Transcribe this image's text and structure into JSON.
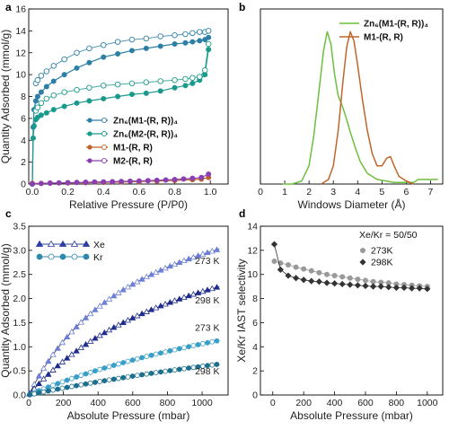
{
  "chart_data": [
    {
      "panel": "a",
      "type": "line",
      "xlabel": "Relative Pressure (P/P0)",
      "ylabel": "Quantity Adsorbed (mmol/g)",
      "xlim": [
        -0.02,
        1.1
      ],
      "ylim": [
        0,
        16
      ],
      "xticks": [
        0.0,
        0.2,
        0.4,
        0.6,
        0.8,
        1.0
      ],
      "xtick_labels": [
        "0.0",
        "0.2",
        "0.4",
        "0.6",
        "0.8",
        "1.0"
      ],
      "yticks": [
        0,
        2,
        4,
        6,
        8,
        10,
        12,
        14,
        16
      ],
      "ytick_labels": [
        "0",
        "2",
        "4",
        "6",
        "8",
        "10",
        "12",
        "14",
        "16"
      ],
      "legend_position": "center-right",
      "series": [
        {
          "name": "Zn6(M1-(R, R))4",
          "legend_label": "Zn₆(M1-(R, R))₄",
          "color": "#2d7fa6",
          "x": [
            0.0,
            0.005,
            0.01,
            0.02,
            0.03,
            0.05,
            0.08,
            0.12,
            0.18,
            0.25,
            0.32,
            0.4,
            0.48,
            0.56,
            0.64,
            0.72,
            0.8,
            0.86,
            0.9,
            0.94,
            0.97,
            0.99
          ],
          "y": [
            0,
            5.2,
            6.8,
            7.6,
            8.0,
            8.4,
            8.9,
            9.4,
            10.0,
            10.6,
            11.1,
            11.6,
            11.9,
            12.2,
            12.4,
            12.6,
            12.8,
            12.9,
            13.0,
            13.1,
            13.2,
            13.4
          ],
          "desorption_y": [
            null,
            null,
            null,
            9.2,
            9.5,
            9.9,
            10.3,
            10.8,
            11.4,
            12.0,
            12.4,
            12.7,
            13.0,
            13.2,
            13.3,
            13.5,
            13.6,
            13.7,
            13.8,
            13.9,
            13.9,
            14.0
          ]
        },
        {
          "name": "Zn6(M2-(R, R))4",
          "legend_label": "Zn₆(M2-(R, R))₄",
          "color": "#1a9a8c",
          "x": [
            0.0,
            0.005,
            0.01,
            0.02,
            0.03,
            0.05,
            0.08,
            0.12,
            0.18,
            0.25,
            0.32,
            0.4,
            0.48,
            0.56,
            0.64,
            0.72,
            0.8,
            0.86,
            0.9,
            0.94,
            0.97,
            0.99
          ],
          "y": [
            0,
            4.2,
            5.3,
            5.9,
            6.1,
            6.3,
            6.5,
            6.8,
            7.1,
            7.4,
            7.6,
            7.8,
            8.0,
            8.2,
            8.3,
            8.5,
            8.8,
            9.0,
            9.2,
            9.5,
            10.0,
            12.3
          ],
          "desorption_y": [
            null,
            null,
            null,
            6.7,
            7.0,
            7.4,
            7.8,
            8.1,
            8.4,
            8.6,
            8.8,
            9.0,
            9.1,
            9.2,
            9.3,
            9.4,
            9.5,
            9.6,
            9.7,
            9.8,
            10.4,
            12.8
          ]
        },
        {
          "name": "M1-(R, R)",
          "legend_label": "M1-(R, R)",
          "color": "#c0652a",
          "x": [
            0.0,
            0.1,
            0.2,
            0.3,
            0.4,
            0.5,
            0.6,
            0.7,
            0.8,
            0.9,
            0.95,
            0.99
          ],
          "y": [
            0.05,
            0.08,
            0.1,
            0.12,
            0.15,
            0.18,
            0.22,
            0.27,
            0.33,
            0.4,
            0.45,
            0.6
          ]
        },
        {
          "name": "M2-(R, R)",
          "legend_label": "M2-(R, R)",
          "color": "#8b3fb0",
          "x": [
            0.0,
            0.05,
            0.1,
            0.15,
            0.2,
            0.25,
            0.3,
            0.35,
            0.4,
            0.45,
            0.5,
            0.55,
            0.6,
            0.65,
            0.7,
            0.75,
            0.8,
            0.85,
            0.9,
            0.95,
            0.99
          ],
          "y": [
            0.02,
            0.05,
            0.08,
            0.1,
            0.12,
            0.14,
            0.16,
            0.18,
            0.2,
            0.22,
            0.24,
            0.26,
            0.28,
            0.31,
            0.34,
            0.37,
            0.41,
            0.46,
            0.52,
            0.6,
            0.9
          ]
        }
      ]
    },
    {
      "panel": "b",
      "type": "line",
      "xlabel": "Windows Diameter (Å)",
      "ylabel": "",
      "xlim": [
        0,
        7.5
      ],
      "ylim": [
        0,
        1.15
      ],
      "xticks": [
        0,
        1,
        2,
        3,
        4,
        5,
        6,
        7
      ],
      "xtick_labels": [
        "0",
        "1",
        "2",
        "3",
        "4",
        "5",
        "6",
        "7"
      ],
      "legend_position": "top-right",
      "series": [
        {
          "name": "Zn6(M1-(R, R))4",
          "legend_label": "Zn₆(M1-(R, R))₄",
          "color": "#6dbf3e",
          "x": [
            0.9,
            1.3,
            1.7,
            2.0,
            2.2,
            2.4,
            2.6,
            2.75,
            2.9,
            3.05,
            3.2,
            3.35,
            3.5,
            3.7,
            3.9,
            4.1,
            4.4,
            4.8,
            5.5,
            6.3,
            6.5,
            7.3
          ],
          "y": [
            0.0,
            0.0,
            0.02,
            0.12,
            0.32,
            0.6,
            0.88,
            1.0,
            0.92,
            0.72,
            0.58,
            0.52,
            0.45,
            0.34,
            0.24,
            0.15,
            0.07,
            0.03,
            0.01,
            0.01,
            0.03,
            0.03
          ]
        },
        {
          "name": "M1-(R, R)",
          "legend_label": "M1-(R, R)",
          "color": "#c0652a",
          "x": [
            2.5,
            2.8,
            3.0,
            3.2,
            3.4,
            3.55,
            3.7,
            3.85,
            4.0,
            4.2,
            4.4,
            4.6,
            4.8,
            5.0,
            5.2,
            5.35,
            5.5,
            5.7,
            6.0,
            6.3
          ],
          "y": [
            0.0,
            0.03,
            0.12,
            0.35,
            0.68,
            0.9,
            1.0,
            0.94,
            0.78,
            0.55,
            0.35,
            0.2,
            0.12,
            0.12,
            0.17,
            0.18,
            0.12,
            0.05,
            0.02,
            0.0
          ]
        }
      ]
    },
    {
      "panel": "c",
      "type": "scatter",
      "xlabel": "Absolute Pressure (mbar)",
      "ylabel": "Quantity Adsorbed (mmol/g)",
      "xlim": [
        0,
        1150
      ],
      "ylim": [
        0,
        3.5
      ],
      "xticks": [
        0,
        200,
        400,
        600,
        800,
        1000
      ],
      "xtick_labels": [
        "0",
        "200",
        "400",
        "600",
        "800",
        "1000"
      ],
      "yticks": [
        0.0,
        0.5,
        1.0,
        1.5,
        2.0,
        2.5,
        3.0,
        3.5
      ],
      "ytick_labels": [
        "0.0",
        "0.5",
        "1.0",
        "1.5",
        "2.0",
        "2.5",
        "3.0",
        "3.5"
      ],
      "legend_position": "top-left",
      "legend": [
        {
          "label": "Xe",
          "color": "#2b3fa6",
          "marker": "triangle"
        },
        {
          "label": "Kr",
          "color": "#2f88b0",
          "marker": "circle"
        }
      ],
      "annotations": [
        {
          "text": "273 K",
          "x": 1030,
          "y": 2.72
        },
        {
          "text": "298 K",
          "x": 1030,
          "y": 1.9
        },
        {
          "text": "273 K",
          "x": 1030,
          "y": 1.33
        },
        {
          "text": "298 K",
          "x": 1030,
          "y": 0.43
        }
      ],
      "series": [
        {
          "name": "Xe 273 K",
          "color": "#6c7fd8",
          "marker": "triangle",
          "qmax": 4.9,
          "b": 0.00147
        },
        {
          "name": "Xe 298 K",
          "color": "#1f2d8f",
          "marker": "triangle",
          "qmax": 4.4,
          "b": 0.00095
        },
        {
          "name": "Kr 273 K",
          "color": "#3a9fc8",
          "marker": "circle",
          "qmax": 3.5,
          "b": 0.000435
        },
        {
          "name": "Kr 298 K",
          "color": "#1d6f8e",
          "marker": "circle",
          "qmax": 2.8,
          "b": 0.00027
        }
      ]
    },
    {
      "panel": "d",
      "type": "scatter",
      "xlabel": "Absolute Pressure (mbar)",
      "ylabel": "Xe/Kr IAST selectivity",
      "xlim": [
        -80,
        1100
      ],
      "ylim": [
        0,
        14
      ],
      "xticks": [
        0,
        200,
        400,
        600,
        800,
        1000
      ],
      "xtick_labels": [
        "0",
        "200",
        "400",
        "600",
        "800",
        "1000"
      ],
      "yticks": [
        0,
        2,
        4,
        6,
        8,
        10,
        12,
        14
      ],
      "ytick_labels": [
        "0",
        "2",
        "4",
        "6",
        "8",
        "10",
        "12",
        "14"
      ],
      "legend_title": "Xe/Kr = 50/50",
      "legend_position": "top-right",
      "series": [
        {
          "name": "273K",
          "color": "#999999",
          "marker": "circle",
          "x": [
            10,
            50,
            100,
            150,
            200,
            250,
            300,
            350,
            400,
            450,
            500,
            550,
            600,
            650,
            700,
            750,
            800,
            850,
            900,
            950,
            1000
          ],
          "y": [
            11.1,
            10.95,
            10.8,
            10.6,
            10.45,
            10.3,
            10.15,
            10.0,
            9.9,
            9.8,
            9.7,
            9.6,
            9.5,
            9.4,
            9.35,
            9.3,
            9.2,
            9.15,
            9.1,
            9.05,
            9.0
          ]
        },
        {
          "name": "298K",
          "color": "#333333",
          "marker": "diamond",
          "x": [
            10,
            50,
            100,
            150,
            200,
            250,
            300,
            350,
            400,
            450,
            500,
            550,
            600,
            650,
            700,
            750,
            800,
            850,
            900,
            950,
            1000
          ],
          "y": [
            12.5,
            10.4,
            9.9,
            9.7,
            9.55,
            9.45,
            9.4,
            9.3,
            9.25,
            9.2,
            9.15,
            9.1,
            9.05,
            9.0,
            9.0,
            8.95,
            8.9,
            8.9,
            8.85,
            8.85,
            8.8
          ]
        }
      ]
    }
  ],
  "panel_letters": [
    "a",
    "b",
    "c",
    "d"
  ]
}
